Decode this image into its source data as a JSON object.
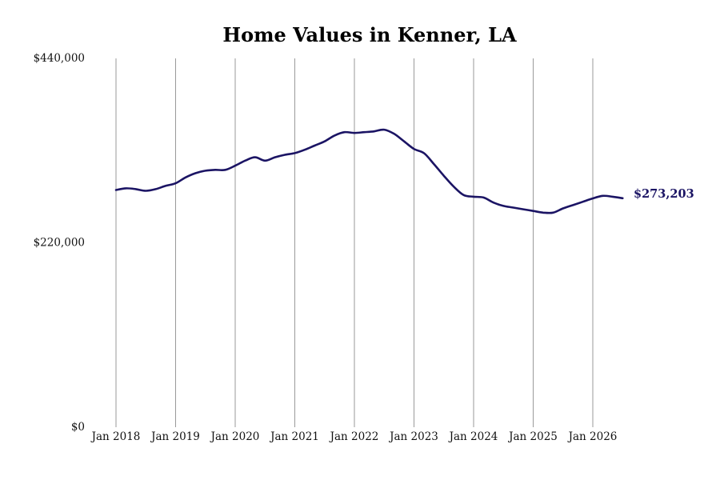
{
  "chart_data": {
    "type": "line",
    "title": "Home Values in Kenner, LA",
    "xlabel": "",
    "ylabel": "",
    "x_tick_labels": [
      "Jan 2018",
      "Jan 2019",
      "Jan 2020",
      "Jan 2021",
      "Jan 2022",
      "Jan 2023",
      "Jan 2024",
      "Jan 2025",
      "Jan 2026"
    ],
    "y_tick_labels": [
      "$0",
      "$220,000",
      "$440,000"
    ],
    "ylim": [
      0,
      440000
    ],
    "xlim": [
      "2018-01",
      "2026-07"
    ],
    "grid": "vertical lines at each January",
    "line_color": "#1b1464",
    "end_label": "$273,203",
    "series": [
      {
        "x": [
          "2018-01",
          "2018-03",
          "2018-05",
          "2018-07",
          "2018-09",
          "2018-11",
          "2019-01",
          "2019-03",
          "2019-05",
          "2019-07",
          "2019-09",
          "2019-11",
          "2020-01",
          "2020-03",
          "2020-05",
          "2020-07",
          "2020-09",
          "2020-11",
          "2021-01",
          "2021-03",
          "2021-05",
          "2021-07",
          "2021-09",
          "2021-11",
          "2022-01",
          "2022-03",
          "2022-05",
          "2022-07",
          "2022-09",
          "2022-11",
          "2023-01",
          "2023-03",
          "2023-05",
          "2023-07",
          "2023-09",
          "2023-11",
          "2024-01",
          "2024-03",
          "2024-05",
          "2024-07",
          "2024-09",
          "2024-11",
          "2025-01",
          "2025-03",
          "2025-05",
          "2025-07",
          "2025-09",
          "2025-11",
          "2026-01",
          "2026-03",
          "2026-05",
          "2026-07"
        ],
        "values": [
          283000,
          285000,
          284000,
          282000,
          284000,
          288000,
          291000,
          298000,
          303000,
          306000,
          307000,
          307000,
          312000,
          318000,
          322000,
          318000,
          322000,
          325000,
          327000,
          331000,
          336000,
          341000,
          348000,
          352000,
          351000,
          352000,
          353000,
          355000,
          350000,
          341000,
          332000,
          327000,
          314000,
          300000,
          287000,
          277000,
          275000,
          274000,
          268000,
          264000,
          262000,
          260000,
          258000,
          256000,
          256000,
          261000,
          265000,
          269000,
          273000,
          276000,
          275000,
          273203
        ]
      }
    ]
  }
}
